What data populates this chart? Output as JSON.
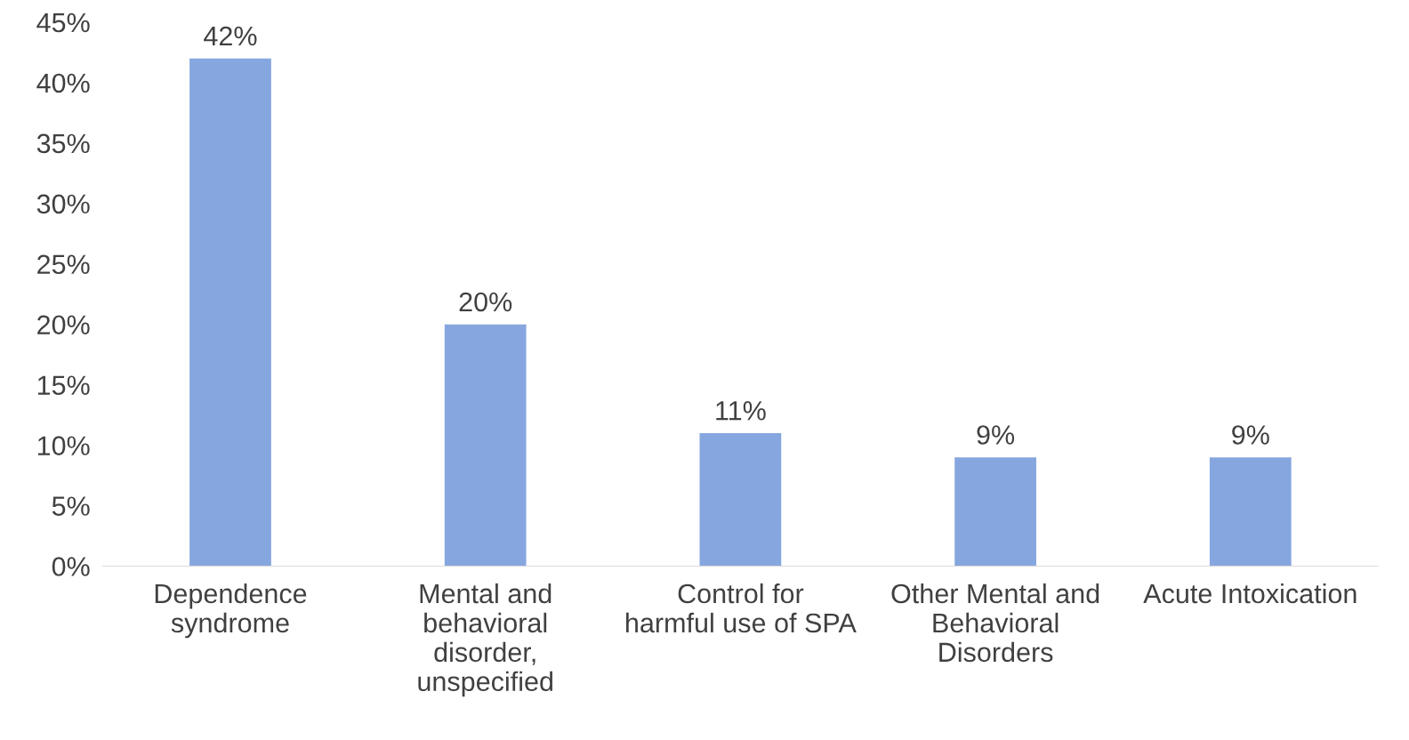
{
  "chart_data": {
    "type": "bar",
    "categories": [
      "Dependence\nsyndrome",
      "Mental and\nbehavioral\ndisorder,\nunspecified",
      "Control for\nharmful use of SPA",
      "Other Mental and\nBehavioral\nDisorders",
      "Acute Intoxication"
    ],
    "values": [
      42,
      20,
      11,
      9,
      9
    ],
    "value_labels": [
      "42%",
      "20%",
      "11%",
      "9%",
      "9%"
    ],
    "color": "#86a6df",
    "ylim": [
      0,
      45
    ],
    "yticks": [
      {
        "value": 0,
        "label": "0%"
      },
      {
        "value": 5,
        "label": "5%"
      },
      {
        "value": 10,
        "label": "10%"
      },
      {
        "value": 15,
        "label": "15%"
      },
      {
        "value": 20,
        "label": "20%"
      },
      {
        "value": 25,
        "label": "25%"
      },
      {
        "value": 30,
        "label": "30%"
      },
      {
        "value": 35,
        "label": "35%"
      },
      {
        "value": 40,
        "label": "40%"
      },
      {
        "value": 45,
        "label": "45%"
      }
    ],
    "grid": false,
    "legend": false
  }
}
